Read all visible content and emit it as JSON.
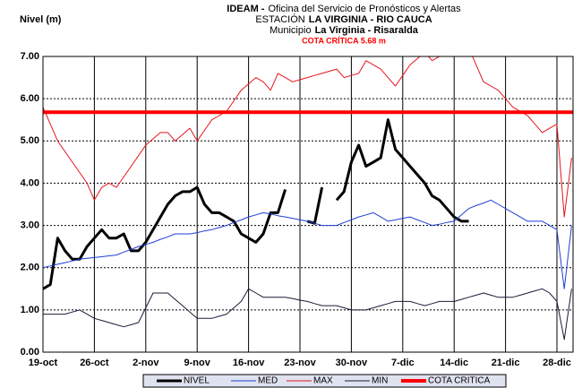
{
  "chart_data": {
    "type": "line",
    "title": [
      "IDEAM -",
      "Oficina del Servicio de Pronósticos y Alertas"
    ],
    "subtitle": [
      "ESTACIÓN",
      "LA VIRGINIA - RIO CAUCA"
    ],
    "subtitle2": [
      "Municipio",
      "La Virginia - Risaralda"
    ],
    "annotation": "COTA CRÍTICA 5.68 m",
    "y_label": "Nivel (m)",
    "categories": [
      "19-oct",
      null,
      null,
      null,
      null,
      null,
      null,
      "26-oct",
      null,
      null,
      null,
      null,
      null,
      null,
      "2-nov",
      null,
      null,
      null,
      null,
      null,
      null,
      "9-nov",
      null,
      null,
      null,
      null,
      null,
      null,
      "16-nov",
      null,
      null,
      null,
      null,
      null,
      null,
      "23-nov",
      null,
      null,
      null,
      null,
      null,
      null,
      "30-nov",
      null,
      null,
      null,
      null,
      null,
      null,
      "7-dic",
      null,
      null,
      null,
      null,
      null,
      null,
      "14-dic",
      null,
      null,
      null,
      null,
      null,
      null,
      "21-dic",
      null,
      null,
      null,
      null,
      null,
      null,
      "28-dic",
      null,
      null
    ],
    "ylim": [
      0,
      7
    ],
    "yticks": [
      {
        "value": 0,
        "label": "0.00"
      },
      {
        "value": 1,
        "label": "1.00"
      },
      {
        "value": 2,
        "label": "2.00"
      },
      {
        "value": 3,
        "label": "3.00"
      },
      {
        "value": 4,
        "label": "4.00"
      },
      {
        "value": 5,
        "label": "5.00"
      },
      {
        "value": 6,
        "label": "6.00"
      },
      {
        "value": 7,
        "label": "7.00"
      }
    ],
    "grid": true,
    "legend": "bottom",
    "series": [
      {
        "name": "NIVEL",
        "color": "#000000",
        "width": 3,
        "values": [
          1.5,
          1.6,
          2.7,
          2.4,
          2.2,
          2.2,
          2.5,
          2.7,
          2.9,
          2.7,
          2.7,
          2.8,
          2.4,
          2.4,
          2.6,
          2.9,
          3.2,
          3.5,
          3.7,
          3.8,
          3.8,
          3.9,
          3.5,
          3.3,
          3.3,
          3.2,
          3.1,
          2.8,
          2.7,
          2.6,
          2.8,
          3.3,
          3.3,
          3.85,
          null,
          null,
          3.1,
          3.05,
          3.9,
          null,
          3.6,
          3.8,
          4.5,
          4.9,
          4.4,
          4.5,
          4.6,
          5.5,
          4.8,
          4.6,
          4.4,
          4.2,
          4.0,
          3.7,
          3.6,
          3.4,
          3.2,
          3.1,
          3.1,
          null,
          null,
          null,
          null,
          null,
          null,
          null,
          null,
          null,
          null,
          null,
          null,
          null,
          null
        ]
      },
      {
        "name": "MED",
        "color": "#1f3fd6",
        "width": 1,
        "values": [
          2.0,
          2.04,
          2.08,
          2.12,
          2.16,
          2.2,
          2.22,
          2.24,
          2.26,
          2.28,
          2.3,
          2.37,
          2.43,
          2.5,
          2.55,
          2.6,
          2.67,
          2.73,
          2.8,
          2.8,
          2.8,
          2.83,
          2.87,
          2.9,
          2.95,
          3.0,
          3.07,
          3.13,
          3.2,
          3.25,
          3.3,
          3.27,
          3.23,
          3.2,
          3.17,
          3.13,
          3.1,
          3.05,
          3.0,
          3.0,
          3.0,
          3.07,
          3.13,
          3.2,
          3.25,
          3.3,
          3.2,
          3.1,
          3.13,
          3.17,
          3.2,
          3.13,
          3.07,
          3.0,
          3.03,
          3.07,
          3.1,
          3.25,
          3.4,
          3.47,
          3.53,
          3.6,
          3.5,
          3.4,
          3.3,
          3.2,
          3.1,
          3.1,
          3.1,
          3.0,
          2.9,
          1.5,
          3.0
        ]
      },
      {
        "name": "MAX",
        "color": "#e8141b",
        "width": 1,
        "values": [
          5.8,
          5.4,
          5.0,
          4.75,
          4.5,
          4.25,
          4.0,
          3.6,
          3.9,
          4.0,
          3.9,
          4.15,
          4.4,
          4.65,
          4.9,
          5.05,
          5.2,
          5.2,
          5.0,
          5.15,
          5.3,
          5.0,
          5.25,
          5.5,
          5.6,
          5.7,
          5.95,
          6.2,
          6.35,
          6.5,
          6.4,
          6.2,
          6.6,
          6.5,
          6.4,
          6.45,
          6.5,
          6.55,
          6.6,
          6.65,
          6.7,
          6.5,
          6.55,
          6.6,
          6.9,
          6.8,
          6.7,
          6.5,
          6.3,
          6.55,
          6.8,
          6.95,
          7.1,
          6.9,
          7.0,
          7.0,
          7.0,
          7.0,
          7.2,
          6.8,
          6.4,
          6.3,
          6.2,
          6.0,
          5.8,
          5.7,
          5.6,
          5.4,
          5.2,
          5.3,
          5.4,
          3.2,
          4.6
        ]
      },
      {
        "name": "MIN",
        "color": "#1a1a3a",
        "width": 1,
        "values": [
          0.9,
          0.9,
          0.9,
          0.9,
          0.95,
          1.0,
          0.9,
          0.8,
          0.75,
          0.7,
          0.65,
          0.6,
          0.65,
          0.7,
          1.05,
          1.4,
          1.4,
          1.4,
          1.25,
          1.1,
          0.95,
          0.8,
          0.8,
          0.8,
          0.85,
          0.9,
          1.05,
          1.2,
          1.5,
          1.4,
          1.3,
          1.3,
          1.3,
          1.3,
          1.27,
          1.23,
          1.2,
          1.15,
          1.1,
          1.1,
          1.1,
          1.05,
          1.0,
          1.0,
          1.0,
          1.05,
          1.1,
          1.15,
          1.2,
          1.2,
          1.2,
          1.15,
          1.1,
          1.15,
          1.2,
          1.2,
          1.2,
          1.25,
          1.3,
          1.35,
          1.4,
          1.35,
          1.3,
          1.3,
          1.3,
          1.35,
          1.4,
          1.45,
          1.5,
          1.4,
          1.2,
          0.3,
          1.5
        ]
      }
    ],
    "threshold": {
      "name": "COTA CRITICA",
      "color": "#ff0000",
      "value": 5.68
    }
  }
}
